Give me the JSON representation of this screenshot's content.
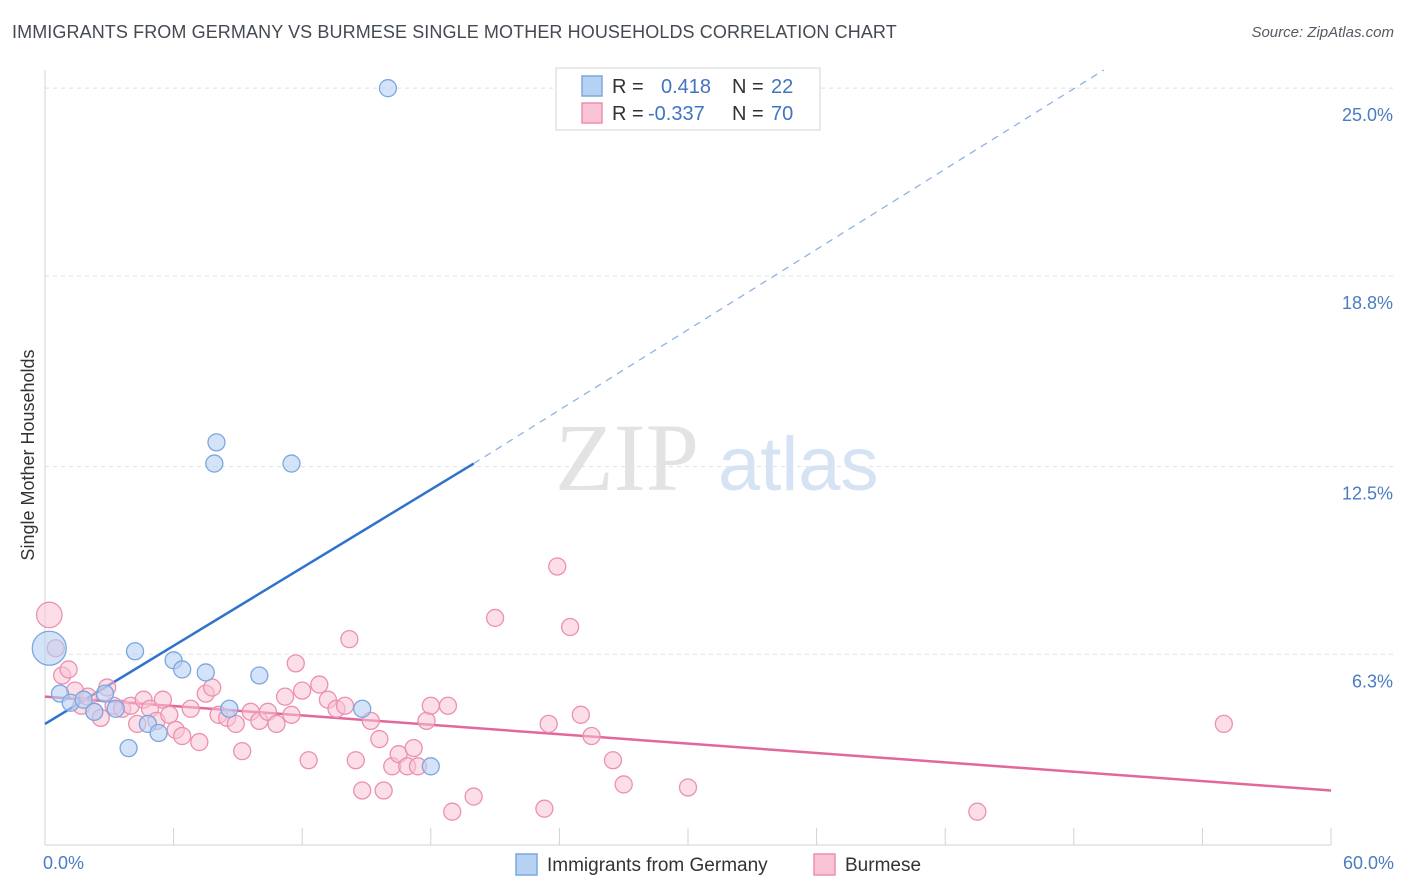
{
  "title": "IMMIGRANTS FROM GERMANY VS BURMESE SINGLE MOTHER HOUSEHOLDS CORRELATION CHART",
  "source": "Source: ZipAtlas.com",
  "watermark": {
    "zip": "ZIP",
    "atlas": "atlas"
  },
  "colors": {
    "blue_stroke": "#7ba7e0",
    "blue_fill": "#b7d1f3",
    "blue_line": "#2f73cc",
    "pink_stroke": "#ec90b0",
    "pink_fill": "#f8c3d5",
    "pink_line": "#e3679a",
    "tick_text": "#4a7cc2",
    "grid": "#dde1e6"
  },
  "legend": {
    "rows": [
      {
        "r_label": "R =",
        "r_value": "0.418",
        "n_label": "N =",
        "n_value": "22"
      },
      {
        "r_label": "R =",
        "r_value": "-0.337",
        "n_label": "N =",
        "n_value": "70"
      }
    ]
  },
  "bottom_legend": [
    "Immigrants from Germany",
    "Burmese"
  ],
  "chart_data": {
    "type": "scatter",
    "title": "IMMIGRANTS FROM GERMANY VS BURMESE SINGLE MOTHER HOUSEHOLDS CORRELATION CHART",
    "xlabel": "",
    "ylabel": "Single Mother Households",
    "xlim": [
      0,
      60
    ],
    "ylim": [
      0,
      25.6
    ],
    "x_tick_labels": [
      "0.0%",
      "60.0%"
    ],
    "y_ticks": [
      6.3,
      12.5,
      18.8,
      25.0
    ],
    "y_tick_labels": [
      "6.3%",
      "12.5%",
      "18.8%",
      "25.0%"
    ],
    "grid": true,
    "legend_position": "top-center",
    "series": [
      {
        "name": "Immigrants from Germany",
        "color": "blue",
        "r": 0.418,
        "n": 22,
        "trend": {
          "x": [
            0,
            20
          ],
          "y": [
            4.0,
            12.6
          ],
          "extended_to": [
            49.4,
            25.6
          ]
        },
        "points": [
          {
            "x": 0.2,
            "y": 6.5,
            "s": 2
          },
          {
            "x": 0.7,
            "y": 5.0
          },
          {
            "x": 1.2,
            "y": 4.7
          },
          {
            "x": 1.8,
            "y": 4.8
          },
          {
            "x": 2.3,
            "y": 4.4
          },
          {
            "x": 2.8,
            "y": 5.0
          },
          {
            "x": 3.3,
            "y": 4.5
          },
          {
            "x": 3.9,
            "y": 3.2
          },
          {
            "x": 4.2,
            "y": 6.4
          },
          {
            "x": 4.8,
            "y": 4.0
          },
          {
            "x": 5.3,
            "y": 3.7
          },
          {
            "x": 6.0,
            "y": 6.1
          },
          {
            "x": 6.4,
            "y": 5.8
          },
          {
            "x": 7.5,
            "y": 5.7
          },
          {
            "x": 7.9,
            "y": 12.6
          },
          {
            "x": 8.0,
            "y": 13.3
          },
          {
            "x": 8.6,
            "y": 4.5
          },
          {
            "x": 10.0,
            "y": 5.6
          },
          {
            "x": 11.5,
            "y": 12.6
          },
          {
            "x": 14.8,
            "y": 4.5
          },
          {
            "x": 16.0,
            "y": 25.0
          },
          {
            "x": 18.0,
            "y": 2.6
          }
        ]
      },
      {
        "name": "Burmese",
        "color": "pink",
        "r": -0.337,
        "n": 70,
        "trend": {
          "x": [
            0,
            60
          ],
          "y": [
            4.9,
            1.8
          ]
        },
        "points": [
          {
            "x": 0.2,
            "y": 7.6,
            "s": 1.5
          },
          {
            "x": 0.5,
            "y": 6.5
          },
          {
            "x": 0.8,
            "y": 5.6
          },
          {
            "x": 1.1,
            "y": 5.8
          },
          {
            "x": 1.4,
            "y": 5.1
          },
          {
            "x": 1.7,
            "y": 4.6
          },
          {
            "x": 2.0,
            "y": 4.9
          },
          {
            "x": 2.3,
            "y": 4.4
          },
          {
            "x": 2.6,
            "y": 4.2
          },
          {
            "x": 2.9,
            "y": 5.2
          },
          {
            "x": 3.2,
            "y": 4.6
          },
          {
            "x": 3.6,
            "y": 4.5
          },
          {
            "x": 4.0,
            "y": 4.6
          },
          {
            "x": 4.3,
            "y": 4.0
          },
          {
            "x": 4.6,
            "y": 4.8
          },
          {
            "x": 4.9,
            "y": 4.5
          },
          {
            "x": 5.2,
            "y": 4.1
          },
          {
            "x": 5.5,
            "y": 4.8
          },
          {
            "x": 5.8,
            "y": 4.3
          },
          {
            "x": 6.1,
            "y": 3.8
          },
          {
            "x": 6.4,
            "y": 3.6
          },
          {
            "x": 6.8,
            "y": 4.5
          },
          {
            "x": 7.2,
            "y": 3.4
          },
          {
            "x": 7.5,
            "y": 5.0
          },
          {
            "x": 7.8,
            "y": 5.2
          },
          {
            "x": 8.1,
            "y": 4.3
          },
          {
            "x": 8.5,
            "y": 4.2
          },
          {
            "x": 8.9,
            "y": 4.0
          },
          {
            "x": 9.2,
            "y": 3.1
          },
          {
            "x": 9.6,
            "y": 4.4
          },
          {
            "x": 10.0,
            "y": 4.1
          },
          {
            "x": 10.4,
            "y": 4.4
          },
          {
            "x": 10.8,
            "y": 4.0
          },
          {
            "x": 11.2,
            "y": 4.9
          },
          {
            "x": 11.5,
            "y": 4.3
          },
          {
            "x": 11.7,
            "y": 6.0
          },
          {
            "x": 12.0,
            "y": 5.1
          },
          {
            "x": 12.3,
            "y": 2.8
          },
          {
            "x": 12.8,
            "y": 5.3
          },
          {
            "x": 13.2,
            "y": 4.8
          },
          {
            "x": 13.6,
            "y": 4.5
          },
          {
            "x": 14.0,
            "y": 4.6
          },
          {
            "x": 14.2,
            "y": 6.8
          },
          {
            "x": 14.5,
            "y": 2.8
          },
          {
            "x": 14.8,
            "y": 1.8
          },
          {
            "x": 15.2,
            "y": 4.1
          },
          {
            "x": 15.6,
            "y": 3.5
          },
          {
            "x": 15.8,
            "y": 1.8
          },
          {
            "x": 16.2,
            "y": 2.6
          },
          {
            "x": 16.5,
            "y": 3.0
          },
          {
            "x": 16.9,
            "y": 2.6
          },
          {
            "x": 17.2,
            "y": 3.2
          },
          {
            "x": 17.4,
            "y": 2.6
          },
          {
            "x": 17.8,
            "y": 4.1
          },
          {
            "x": 18.0,
            "y": 4.6
          },
          {
            "x": 19.0,
            "y": 1.1
          },
          {
            "x": 20.0,
            "y": 1.6
          },
          {
            "x": 21.0,
            "y": 7.5
          },
          {
            "x": 23.3,
            "y": 1.2
          },
          {
            "x": 23.5,
            "y": 4.0
          },
          {
            "x": 23.9,
            "y": 9.2
          },
          {
            "x": 24.5,
            "y": 7.2
          },
          {
            "x": 25.0,
            "y": 4.3
          },
          {
            "x": 25.5,
            "y": 3.6
          },
          {
            "x": 26.5,
            "y": 2.8
          },
          {
            "x": 27.0,
            "y": 2.0
          },
          {
            "x": 30.0,
            "y": 1.9
          },
          {
            "x": 43.5,
            "y": 1.1
          },
          {
            "x": 55.0,
            "y": 4.0
          },
          {
            "x": 18.8,
            "y": 4.6
          }
        ]
      }
    ]
  }
}
